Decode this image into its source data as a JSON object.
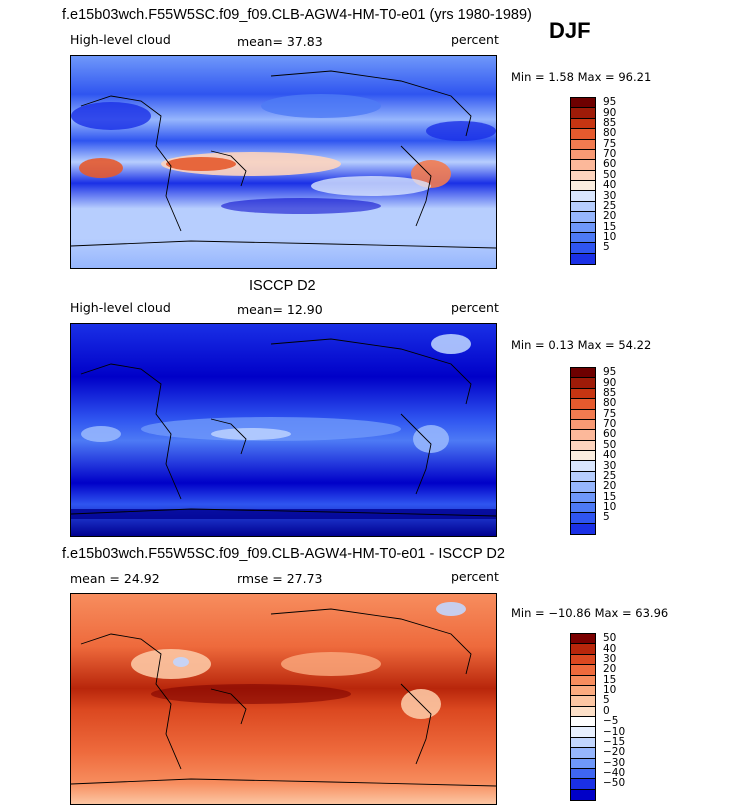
{
  "season": "DJF",
  "colors": {
    "abs_scale": [
      "#000090",
      "#0000c8",
      "#1a30e6",
      "#2f55f0",
      "#4d7af5",
      "#6f98fa",
      "#96b6fd",
      "#b7cefe",
      "#d9e6fe",
      "#fbeee0",
      "#fdd4be",
      "#fcb89a",
      "#f99a74",
      "#f27b50",
      "#e55a2e",
      "#c63512",
      "#9e1b08",
      "#6e0000"
    ],
    "diff_scale": [
      "#000090",
      "#0000c8",
      "#1a30e6",
      "#3f66f2",
      "#6f98fa",
      "#96b6fd",
      "#c2d6fe",
      "#e8f0ff",
      "#ffffff",
      "#fde0c8",
      "#fcc6a3",
      "#fbab80",
      "#f78d5e",
      "#ee6a3c",
      "#db4820",
      "#b8260b",
      "#7a0000"
    ]
  },
  "panels": [
    {
      "title": "f.e15b03wch.F55W5SC.f09_f09.CLB-AGW4-HM-T0-e01 (yrs 1980-1989)",
      "left_label": "High-level cloud",
      "center_label": "mean=   37.83",
      "right_label": "percent",
      "minmax": "Min =     1.58 Max =   96.21"
    },
    {
      "title": "ISCCP D2",
      "left_label": "High-level cloud",
      "center_label": "mean=   12.90",
      "right_label": "percent",
      "minmax": "Min =     0.13 Max =   54.22"
    },
    {
      "title": "f.e15b03wch.F55W5SC.f09_f09.CLB-AGW4-HM-T0-e01 - ISCCP D2",
      "left_label": "mean  =    24.92",
      "center_label": "rmse  =    27.73",
      "right_label": "percent",
      "minmax": "Min =  −10.86 Max =   63.96"
    }
  ],
  "colorbars": {
    "abs_ticks": [
      "95",
      "90",
      "85",
      "80",
      "75",
      "70",
      "60",
      "50",
      "40",
      "30",
      "25",
      "20",
      "15",
      "10",
      "5"
    ],
    "diff_ticks": [
      "50",
      "40",
      "30",
      "20",
      "15",
      "10",
      "5",
      "0",
      "−5",
      "−10",
      "−15",
      "−20",
      "−30",
      "−40",
      "−50"
    ]
  },
  "chart_data": [
    {
      "type": "heatmap",
      "title": "f.e15b03wch.F55W5SC.f09_f09.CLB-AGW4-HM-T0-e01 (yrs 1980-1989)",
      "variable": "High-level cloud",
      "units": "percent",
      "mean": 37.83,
      "min": 1.58,
      "max": 96.21,
      "contour_levels": [
        5,
        10,
        15,
        20,
        25,
        30,
        40,
        50,
        60,
        70,
        75,
        80,
        85,
        90,
        95
      ]
    },
    {
      "type": "heatmap",
      "title": "ISCCP D2",
      "variable": "High-level cloud",
      "units": "percent",
      "mean": 12.9,
      "min": 0.13,
      "max": 54.22,
      "contour_levels": [
        5,
        10,
        15,
        20,
        25,
        30,
        40,
        50,
        60,
        70,
        75,
        80,
        85,
        90,
        95
      ]
    },
    {
      "type": "heatmap",
      "title": "f.e15b03wch.F55W5SC.f09_f09.CLB-AGW4-HM-T0-e01 - ISCCP D2",
      "units": "percent",
      "mean": 24.92,
      "rmse": 27.73,
      "min": -10.86,
      "max": 63.96,
      "contour_levels": [
        -50,
        -40,
        -30,
        -20,
        -15,
        -10,
        -5,
        0,
        5,
        10,
        15,
        20,
        30,
        40,
        50
      ]
    }
  ]
}
